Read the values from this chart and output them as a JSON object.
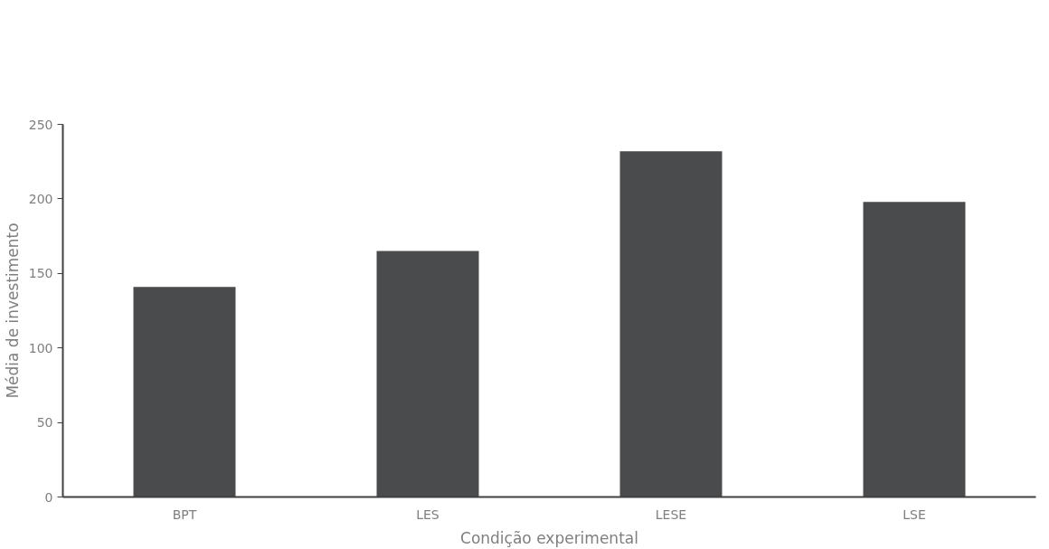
{
  "chart_data": {
    "type": "bar",
    "categories": [
      "BPT",
      "LES",
      "LESE",
      "LSE"
    ],
    "values": [
      141,
      165,
      232,
      198
    ],
    "color": "#4a4b4d",
    "xlabel": "Condição experimental",
    "ylabel": "Média de investimento",
    "ylim": [
      0,
      250
    ],
    "yticks": [
      0,
      50,
      100,
      150,
      200,
      250
    ],
    "grid": false
  }
}
